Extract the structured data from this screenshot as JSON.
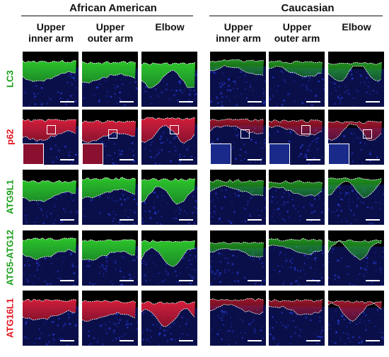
{
  "groups": [
    {
      "title": "African American"
    },
    {
      "title": "Caucasian"
    }
  ],
  "columns": [
    {
      "label": "Upper\ninner arm"
    },
    {
      "label": "Upper\nouter arm"
    },
    {
      "label": "Elbow"
    },
    {
      "label": "Upper\ninner arm"
    },
    {
      "label": "Upper\nouter arm"
    },
    {
      "label": "Elbow"
    }
  ],
  "rows": [
    {
      "label": "LC3",
      "color": "#1a9e1a",
      "stain": "green"
    },
    {
      "label": "p62",
      "color": "#e0141e",
      "stain": "red"
    },
    {
      "label": "ATG9L1",
      "color": "#1a9e1a",
      "stain": "green"
    },
    {
      "label": "ATG5-ATG12",
      "color": "#1a9e1a",
      "stain": "green"
    },
    {
      "label": "ATG16L1",
      "color": "#e0141e",
      "stain": "red"
    }
  ]
}
